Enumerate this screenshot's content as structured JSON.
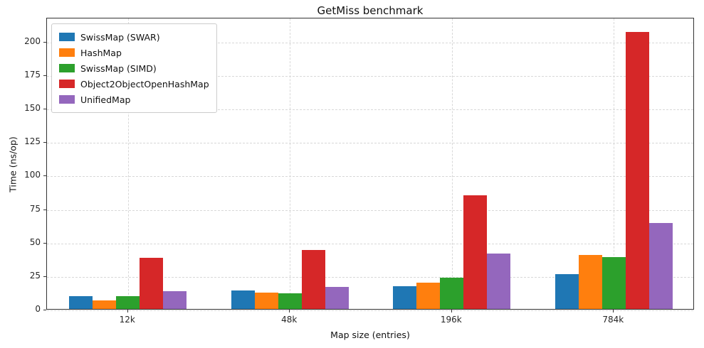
{
  "chart_data": {
    "type": "bar",
    "title": "GetMiss benchmark",
    "xlabel": "Map size (entries)",
    "ylabel": "Time (ns/op)",
    "categories": [
      "12k",
      "48k",
      "196k",
      "784k"
    ],
    "series": [
      {
        "name": "SwissMap (SWAR)",
        "color": "#1f77b4",
        "values": [
          9.6,
          13.7,
          17.1,
          26.1
        ]
      },
      {
        "name": "HashMap",
        "color": "#ff7f0e",
        "values": [
          6.5,
          12.4,
          19.6,
          40.5
        ]
      },
      {
        "name": "SwissMap (SIMD)",
        "color": "#2ca02c",
        "values": [
          9.7,
          11.9,
          23.5,
          38.9
        ]
      },
      {
        "name": "Object2ObjectOpenHashMap",
        "color": "#d62728",
        "values": [
          38.0,
          44.2,
          84.7,
          207.0
        ]
      },
      {
        "name": "UnifiedMap",
        "color": "#9467bd",
        "values": [
          13.4,
          16.6,
          41.6,
          64.3
        ]
      }
    ],
    "ylim": [
      0,
      218
    ],
    "yticks": [
      0,
      25,
      50,
      75,
      100,
      125,
      150,
      175,
      200
    ],
    "grid": true,
    "grid_linestyle": "dashed",
    "legend_position": "upper left"
  }
}
